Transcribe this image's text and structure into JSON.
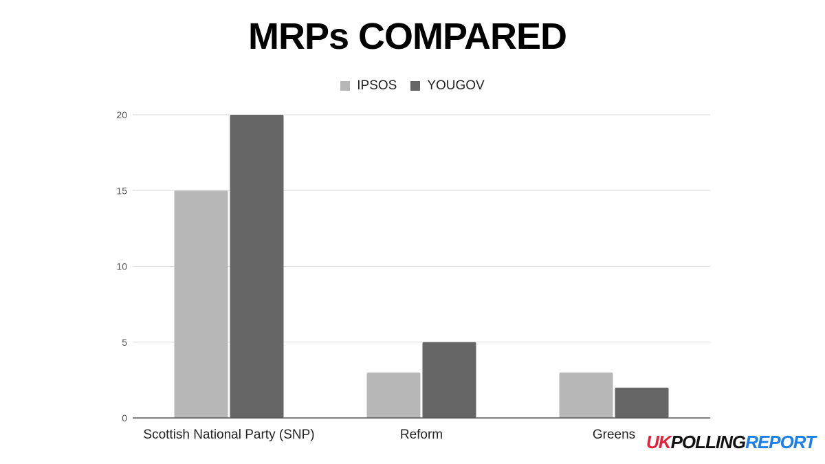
{
  "title": "MRPs COMPARED",
  "legend": [
    {
      "label": "IPSOS",
      "color": "#b7b7b7"
    },
    {
      "label": "YOUGOV",
      "color": "#666666"
    }
  ],
  "logo": {
    "part1": "UK",
    "part2": "POLLING",
    "part3": "REPORT"
  },
  "chart_data": {
    "type": "bar",
    "title": "MRPs COMPARED",
    "xlabel": "",
    "ylabel": "",
    "categories": [
      "Scottish National Party (SNP)",
      "Reform",
      "Greens"
    ],
    "series": [
      {
        "name": "IPSOS",
        "values": [
          15,
          3,
          3
        ],
        "color": "#b7b7b7"
      },
      {
        "name": "YOUGOV",
        "values": [
          20,
          5,
          2
        ],
        "color": "#666666"
      }
    ],
    "ylim": [
      0,
      20
    ],
    "yticks": [
      0,
      5,
      10,
      15,
      20
    ],
    "grid": true,
    "legend_position": "top"
  }
}
